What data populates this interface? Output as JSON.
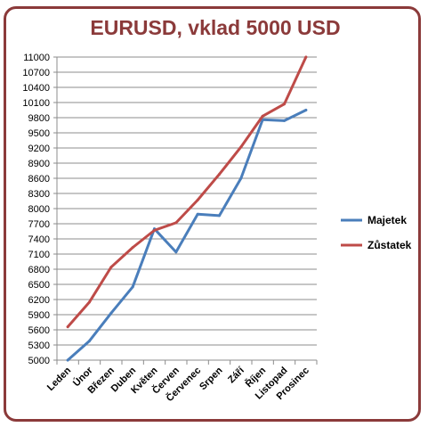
{
  "chart_data": {
    "type": "line",
    "title": "EURUSD, vklad 5000 USD",
    "xlabel": "",
    "ylabel": "",
    "categories": [
      "Leden",
      "Únor",
      "Březen",
      "Duben",
      "Květen",
      "Červen",
      "Červenec",
      "Srpen",
      "Září",
      "Říjen",
      "Listopad",
      "Prosinec"
    ],
    "series": [
      {
        "name": "Majetek",
        "color": "#4a7ebb",
        "values": [
          5000,
          5380,
          5930,
          6450,
          7600,
          7140,
          7890,
          7860,
          8600,
          9760,
          9740,
          9950
        ]
      },
      {
        "name": "Zůstatek",
        "color": "#be4b48",
        "values": [
          5660,
          6150,
          6840,
          7230,
          7570,
          7720,
          8170,
          8680,
          9220,
          9830,
          10070,
          11000
        ]
      }
    ],
    "ylim": [
      5000,
      11000
    ],
    "ytick_step": 300,
    "yticks": [
      "5000",
      "5300",
      "5600",
      "5900",
      "6200",
      "6500",
      "6800",
      "7100",
      "7400",
      "7700",
      "8000",
      "8300",
      "8600",
      "8900",
      "9200",
      "9500",
      "9800",
      "10100",
      "10400",
      "10700",
      "11000"
    ],
    "grid": true,
    "legend_position": "right"
  }
}
